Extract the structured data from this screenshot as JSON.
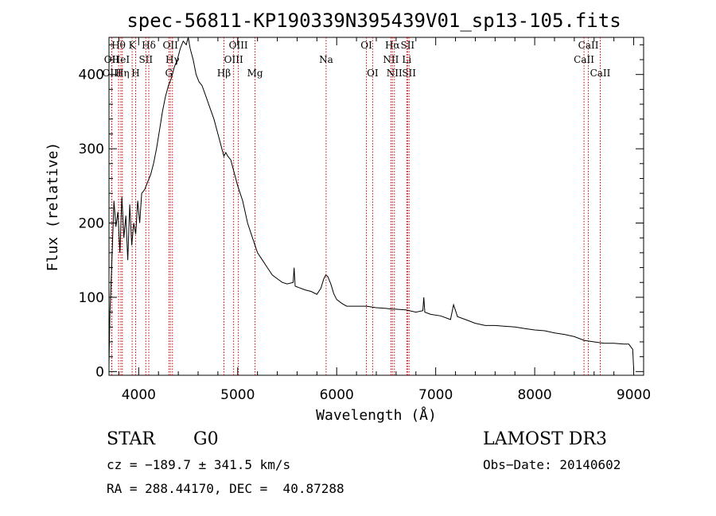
{
  "chart_data": {
    "type": "line",
    "title": "spec-56811-KP190339N395439V01_sp13-105.fits",
    "xlabel": "Wavelength (Å)",
    "ylabel": "Flux (relative)",
    "xlim": [
      3700,
      9100
    ],
    "ylim": [
      -5,
      450
    ],
    "xticks": [
      4000,
      5000,
      6000,
      7000,
      8000,
      9000
    ],
    "yticks": [
      0,
      100,
      200,
      300,
      400
    ],
    "grid": false,
    "series": [
      {
        "name": "flux",
        "x": [
          3700,
          3710,
          3730,
          3750,
          3770,
          3790,
          3810,
          3830,
          3850,
          3870,
          3890,
          3910,
          3930,
          3950,
          3970,
          3990,
          4010,
          4030,
          4060,
          4090,
          4120,
          4150,
          4180,
          4210,
          4240,
          4270,
          4300,
          4330,
          4360,
          4390,
          4420,
          4450,
          4480,
          4500,
          4520,
          4550,
          4580,
          4610,
          4640,
          4680,
          4720,
          4760,
          4800,
          4840,
          4860,
          4880,
          4900,
          4930,
          4960,
          5000,
          5050,
          5100,
          5150,
          5200,
          5250,
          5300,
          5350,
          5400,
          5450,
          5500,
          5560,
          5570,
          5580,
          5620,
          5680,
          5740,
          5800,
          5840,
          5870,
          5890,
          5910,
          5940,
          5970,
          6000,
          6050,
          6100,
          6200,
          6300,
          6400,
          6500,
          6560,
          6600,
          6700,
          6800,
          6870,
          6880,
          6890,
          6950,
          7050,
          7150,
          7180,
          7200,
          7220,
          7300,
          7400,
          7500,
          7600,
          7700,
          7800,
          7900,
          8000,
          8100,
          8200,
          8300,
          8400,
          8500,
          8600,
          8700,
          8800,
          8900,
          8950,
          8990,
          9000
        ],
        "y": [
          10,
          80,
          150,
          230,
          195,
          215,
          160,
          235,
          180,
          210,
          150,
          225,
          170,
          200,
          185,
          230,
          200,
          240,
          245,
          255,
          265,
          280,
          300,
          325,
          350,
          370,
          385,
          395,
          410,
          420,
          435,
          445,
          440,
          450,
          435,
          420,
          400,
          390,
          385,
          370,
          355,
          340,
          320,
          300,
          290,
          295,
          290,
          285,
          270,
          250,
          230,
          200,
          180,
          160,
          150,
          140,
          130,
          125,
          120,
          118,
          120,
          140,
          115,
          113,
          110,
          108,
          104,
          112,
          125,
          130,
          128,
          118,
          105,
          97,
          92,
          88,
          88,
          88,
          86,
          85,
          84,
          84,
          83,
          80,
          82,
          100,
          80,
          77,
          75,
          70,
          90,
          82,
          74,
          70,
          65,
          62,
          62,
          61,
          60,
          58,
          56,
          55,
          52,
          50,
          47,
          42,
          40,
          38,
          38,
          37,
          37,
          30,
          2
        ]
      }
    ],
    "line_markers": [
      {
        "label": "Hθ",
        "wavelength": 3797,
        "row": 0
      },
      {
        "label": "OII",
        "wavelength": 3727,
        "row": 1
      },
      {
        "label": "OIII",
        "wavelength": 3729,
        "row": 2
      },
      {
        "label": "HeI",
        "wavelength": 3820,
        "row": 1
      },
      {
        "label": "Hη",
        "wavelength": 3835,
        "row": 2
      },
      {
        "label": "K",
        "wavelength": 3934,
        "row": 0
      },
      {
        "label": "SII",
        "wavelength": 4072,
        "row": 1
      },
      {
        "label": "H",
        "wavelength": 3969,
        "row": 2
      },
      {
        "label": "Hδ",
        "wavelength": 4102,
        "row": 0
      },
      {
        "label": "OII",
        "wavelength": 4320,
        "row": 0
      },
      {
        "label": "Hγ",
        "wavelength": 4341,
        "row": 1
      },
      {
        "label": "G",
        "wavelength": 4305,
        "row": 2
      },
      {
        "label": "Hβ",
        "wavelength": 4861,
        "row": 2
      },
      {
        "label": "OIII",
        "wavelength": 5007,
        "row": 0
      },
      {
        "label": "OIII",
        "wavelength": 4959,
        "row": 1
      },
      {
        "label": "Mg",
        "wavelength": 5175,
        "row": 2
      },
      {
        "label": "Na",
        "wavelength": 5893,
        "row": 1
      },
      {
        "label": "OI",
        "wavelength": 6300,
        "row": 0
      },
      {
        "label": "OI",
        "wavelength": 6363,
        "row": 2
      },
      {
        "label": "Hα",
        "wavelength": 6563,
        "row": 0
      },
      {
        "label": "NII",
        "wavelength": 6548,
        "row": 1
      },
      {
        "label": "NII",
        "wavelength": 6583,
        "row": 2
      },
      {
        "label": "SII",
        "wavelength": 6716,
        "row": 0
      },
      {
        "label": "Li",
        "wavelength": 6708,
        "row": 1
      },
      {
        "label": "SII",
        "wavelength": 6731,
        "row": 2
      },
      {
        "label": "CaII",
        "wavelength": 8542,
        "row": 0
      },
      {
        "label": "CaII",
        "wavelength": 8498,
        "row": 1
      },
      {
        "label": "CaII",
        "wavelength": 8662,
        "row": 2
      }
    ],
    "marker_color": "#cc0000",
    "line_color": "#000000"
  },
  "info": {
    "object_class": "STAR",
    "subclass": "G0",
    "survey": "LAMOST DR3",
    "redshift_text": "cz = −189.7 ± 341.5 km/s",
    "obs_date_text": "Obs−Date: 20140602",
    "coords_text": "RA = 288.44170, DEC =  40.87288"
  }
}
